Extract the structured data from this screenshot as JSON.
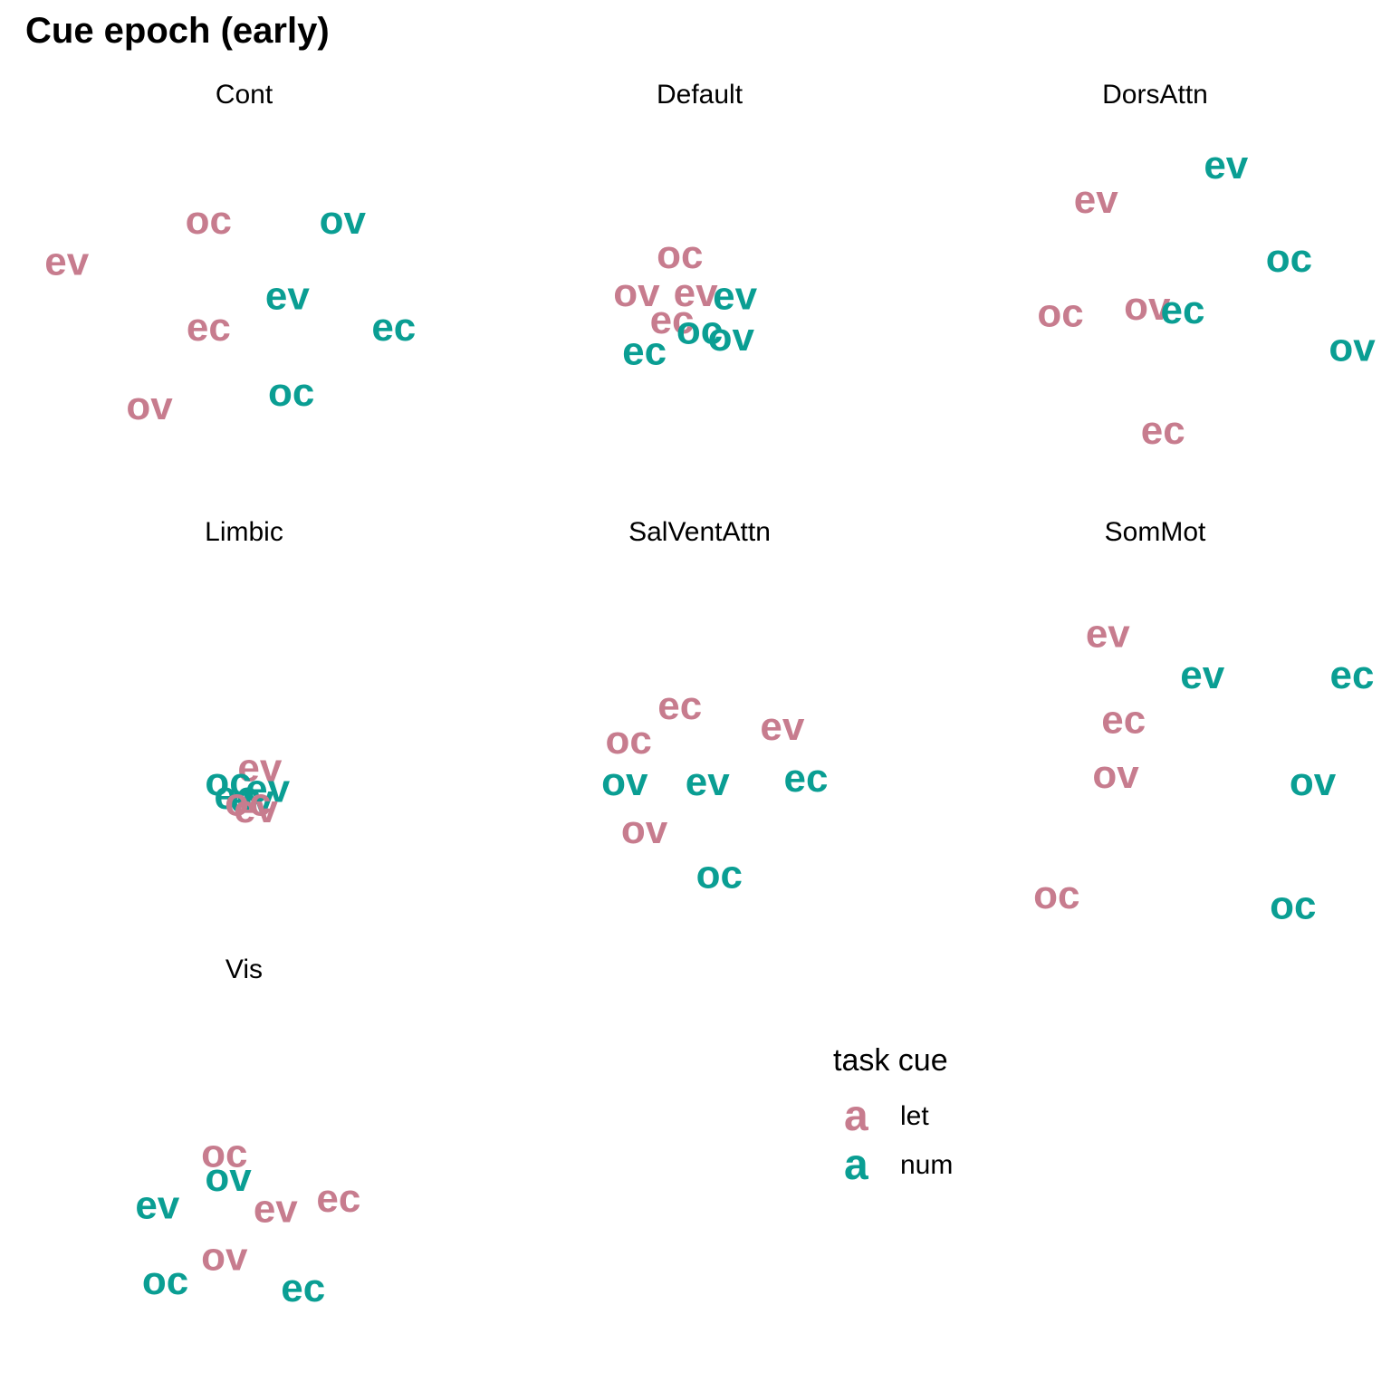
{
  "title": "Cue epoch (early)",
  "colors": {
    "let": "#c77c8e",
    "num": "#0a9e93"
  },
  "legend": {
    "title": "task cue",
    "key_glyph": "a",
    "items": [
      {
        "label": "let",
        "color": "#c77c8e"
      },
      {
        "label": "num",
        "color": "#0a9e93"
      }
    ]
  },
  "chart_data": {
    "type": "scatter",
    "mark": "text",
    "title": "Cue epoch (early)",
    "grid": false,
    "axes": "none",
    "legend_position": "bottom-right",
    "facets": [
      {
        "name": "Cont",
        "points": [
          {
            "label": "oc",
            "cue": "let",
            "x": 0.41,
            "y": 0.72
          },
          {
            "label": "ov",
            "cue": "num",
            "x": 0.75,
            "y": 0.72
          },
          {
            "label": "ev",
            "cue": "let",
            "x": 0.05,
            "y": 0.6
          },
          {
            "label": "ev",
            "cue": "num",
            "x": 0.61,
            "y": 0.5
          },
          {
            "label": "ec",
            "cue": "let",
            "x": 0.41,
            "y": 0.41
          },
          {
            "label": "ec",
            "cue": "num",
            "x": 0.88,
            "y": 0.41
          },
          {
            "label": "oc",
            "cue": "num",
            "x": 0.62,
            "y": 0.22
          },
          {
            "label": "ov",
            "cue": "let",
            "x": 0.26,
            "y": 0.18
          }
        ]
      },
      {
        "name": "Default",
        "points": [
          {
            "label": "oc",
            "cue": "let",
            "x": 0.45,
            "y": 0.62
          },
          {
            "label": "ov",
            "cue": "let",
            "x": 0.34,
            "y": 0.51
          },
          {
            "label": "ev",
            "cue": "let",
            "x": 0.49,
            "y": 0.51
          },
          {
            "label": "ev",
            "cue": "num",
            "x": 0.59,
            "y": 0.5
          },
          {
            "label": "ec",
            "cue": "let",
            "x": 0.43,
            "y": 0.43
          },
          {
            "label": "oc",
            "cue": "num",
            "x": 0.5,
            "y": 0.4
          },
          {
            "label": "ov",
            "cue": "num",
            "x": 0.58,
            "y": 0.38
          },
          {
            "label": "ec",
            "cue": "num",
            "x": 0.36,
            "y": 0.34
          }
        ]
      },
      {
        "name": "DorsAttn",
        "points": [
          {
            "label": "ev",
            "cue": "num",
            "x": 0.68,
            "y": 0.88
          },
          {
            "label": "ev",
            "cue": "let",
            "x": 0.35,
            "y": 0.78
          },
          {
            "label": "oc",
            "cue": "num",
            "x": 0.84,
            "y": 0.61
          },
          {
            "label": "oc",
            "cue": "let",
            "x": 0.26,
            "y": 0.45
          },
          {
            "label": "ov",
            "cue": "let",
            "x": 0.48,
            "y": 0.47
          },
          {
            "label": "ec",
            "cue": "num",
            "x": 0.57,
            "y": 0.46
          },
          {
            "label": "ov",
            "cue": "num",
            "x": 1.0,
            "y": 0.35
          },
          {
            "label": "ec",
            "cue": "let",
            "x": 0.52,
            "y": 0.11
          }
        ]
      },
      {
        "name": "Limbic",
        "points": [
          {
            "label": "ev",
            "cue": "let",
            "x": 0.54,
            "y": 0.4
          },
          {
            "label": "oc",
            "cue": "num",
            "x": 0.46,
            "y": 0.36
          },
          {
            "label": "ev",
            "cue": "num",
            "x": 0.56,
            "y": 0.34
          },
          {
            "label": "ec",
            "cue": "num",
            "x": 0.48,
            "y": 0.32
          },
          {
            "label": "ev",
            "cue": "num",
            "x": 0.52,
            "y": 0.31
          },
          {
            "label": "oc",
            "cue": "let",
            "x": 0.51,
            "y": 0.3
          },
          {
            "label": "ev",
            "cue": "let",
            "x": 0.53,
            "y": 0.28
          }
        ]
      },
      {
        "name": "SalVentAttn",
        "points": [
          {
            "label": "ec",
            "cue": "let",
            "x": 0.45,
            "y": 0.58
          },
          {
            "label": "ev",
            "cue": "let",
            "x": 0.71,
            "y": 0.52
          },
          {
            "label": "oc",
            "cue": "let",
            "x": 0.32,
            "y": 0.48
          },
          {
            "label": "ov",
            "cue": "num",
            "x": 0.31,
            "y": 0.36
          },
          {
            "label": "ev",
            "cue": "num",
            "x": 0.52,
            "y": 0.36
          },
          {
            "label": "ec",
            "cue": "num",
            "x": 0.77,
            "y": 0.37
          },
          {
            "label": "ov",
            "cue": "let",
            "x": 0.36,
            "y": 0.22
          },
          {
            "label": "oc",
            "cue": "num",
            "x": 0.55,
            "y": 0.09
          }
        ]
      },
      {
        "name": "SomMot",
        "points": [
          {
            "label": "ev",
            "cue": "let",
            "x": 0.38,
            "y": 0.79
          },
          {
            "label": "ev",
            "cue": "num",
            "x": 0.62,
            "y": 0.67
          },
          {
            "label": "ec",
            "cue": "num",
            "x": 1.0,
            "y": 0.67
          },
          {
            "label": "ec",
            "cue": "let",
            "x": 0.42,
            "y": 0.54
          },
          {
            "label": "ov",
            "cue": "let",
            "x": 0.4,
            "y": 0.38
          },
          {
            "label": "ov",
            "cue": "num",
            "x": 0.9,
            "y": 0.36
          },
          {
            "label": "oc",
            "cue": "let",
            "x": 0.25,
            "y": 0.03
          },
          {
            "label": "oc",
            "cue": "num",
            "x": 0.85,
            "y": 0.0
          }
        ]
      },
      {
        "name": "Vis",
        "points": [
          {
            "label": "oc",
            "cue": "let",
            "x": 0.45,
            "y": 0.55
          },
          {
            "label": "ov",
            "cue": "num",
            "x": 0.46,
            "y": 0.48
          },
          {
            "label": "ev",
            "cue": "num",
            "x": 0.28,
            "y": 0.4
          },
          {
            "label": "ev",
            "cue": "let",
            "x": 0.58,
            "y": 0.39
          },
          {
            "label": "ec",
            "cue": "let",
            "x": 0.74,
            "y": 0.42
          },
          {
            "label": "ov",
            "cue": "let",
            "x": 0.45,
            "y": 0.25
          },
          {
            "label": "oc",
            "cue": "num",
            "x": 0.3,
            "y": 0.18
          },
          {
            "label": "ec",
            "cue": "num",
            "x": 0.65,
            "y": 0.16
          }
        ]
      }
    ]
  }
}
